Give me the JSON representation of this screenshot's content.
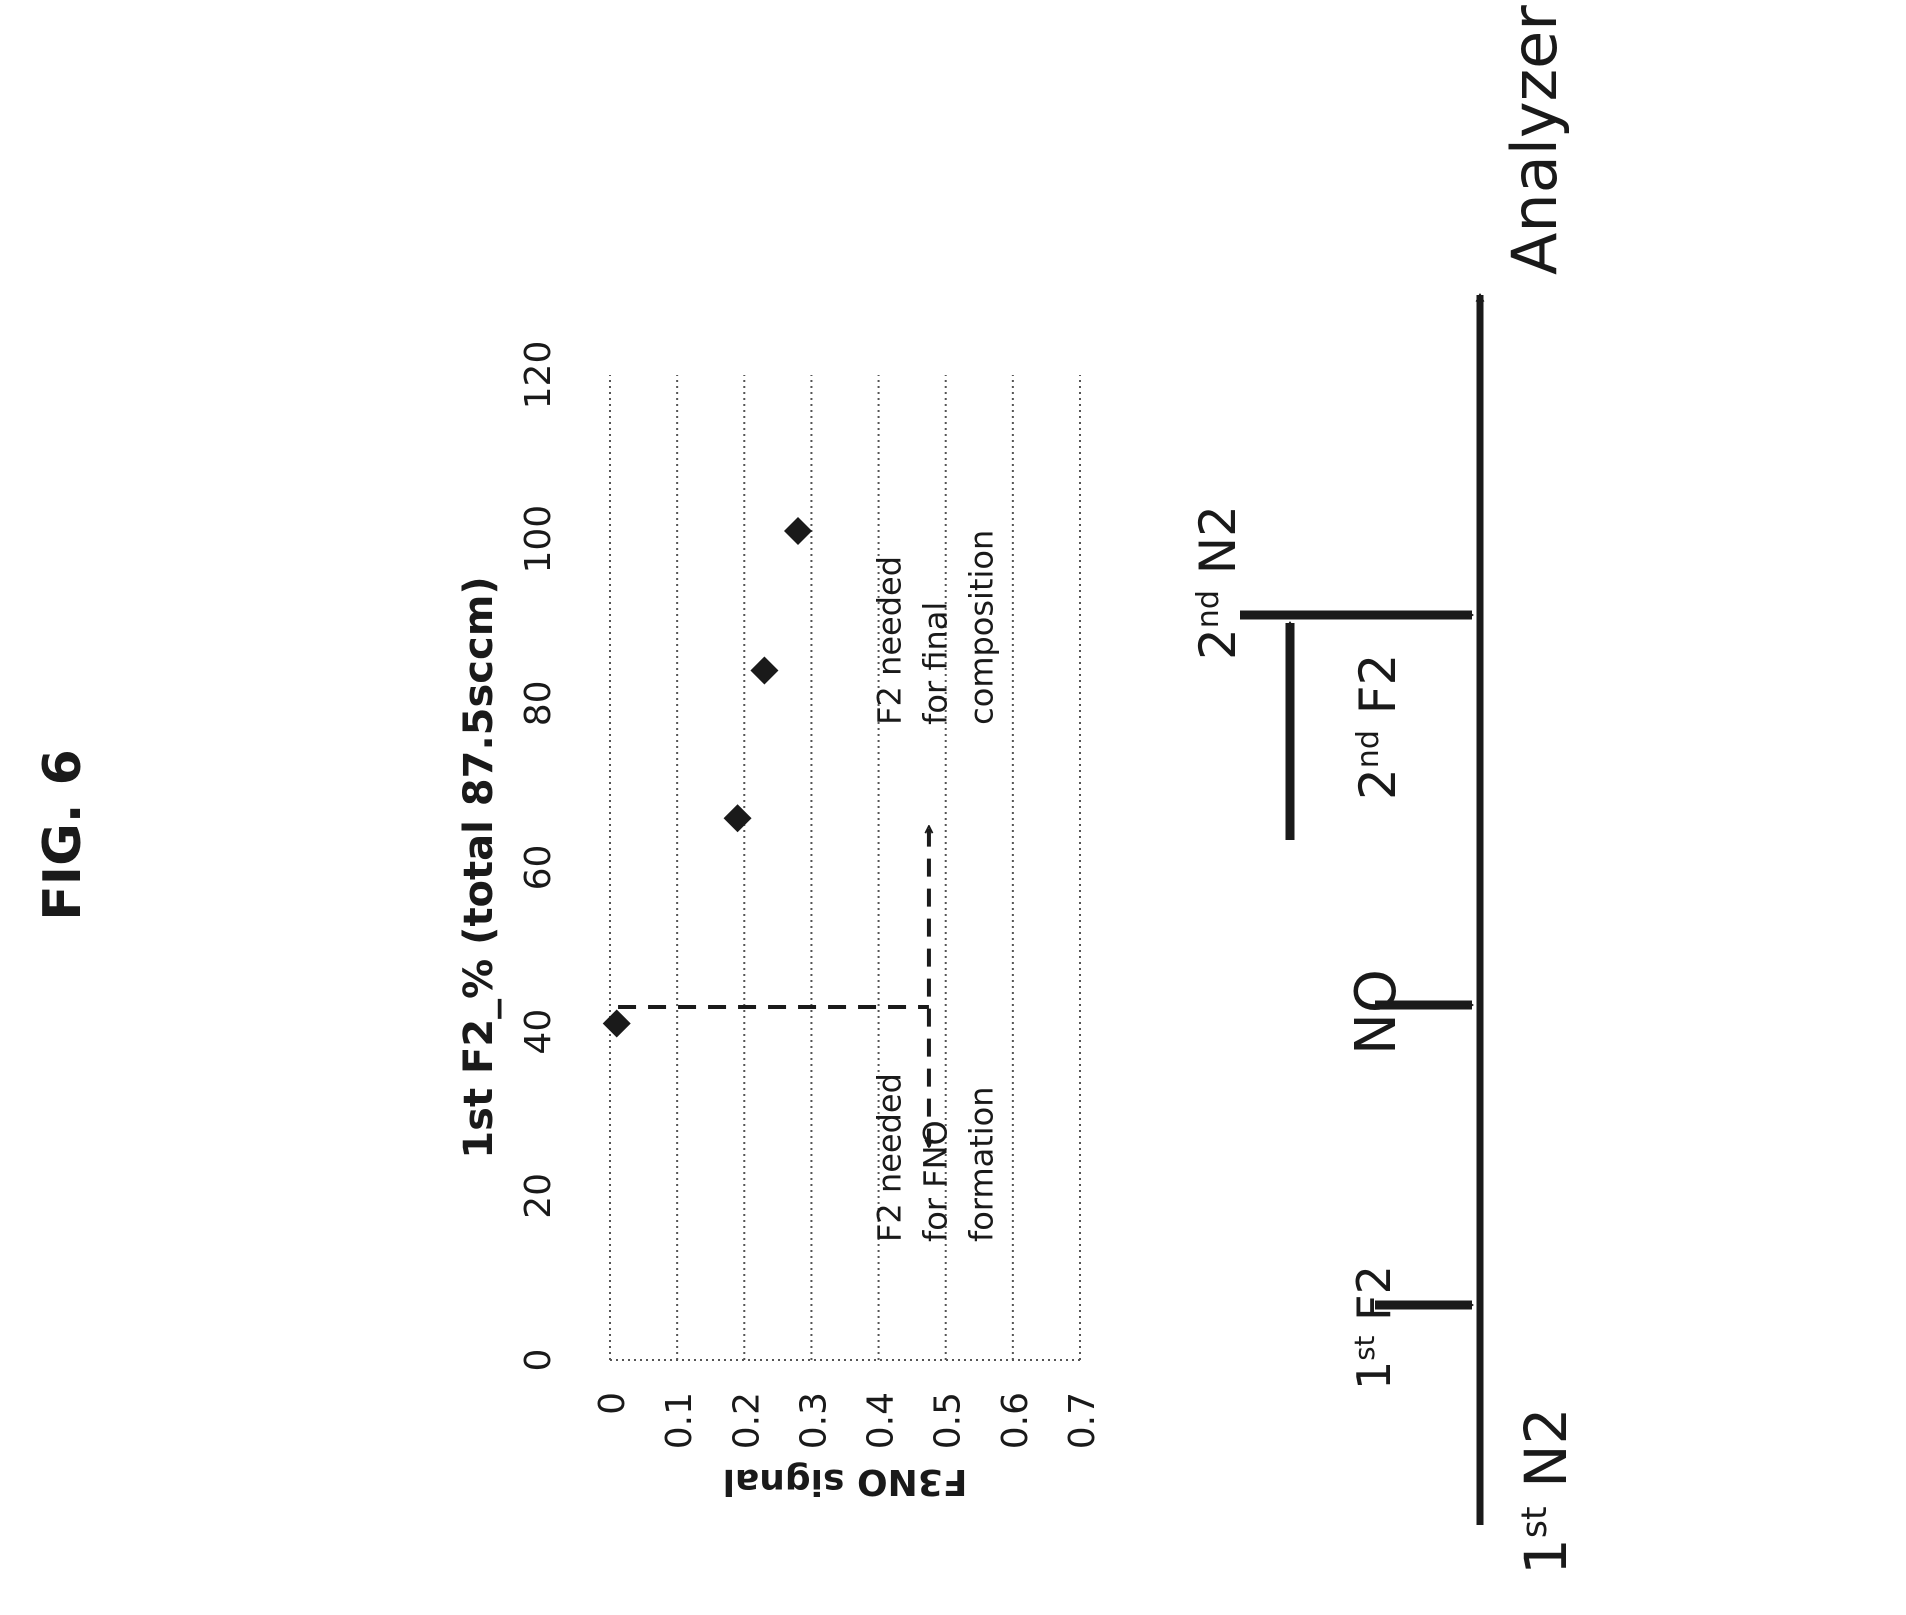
{
  "figure_label": "FIG. 6",
  "diagram": {
    "n2_first": "1st N2",
    "f2_first": "1st F2",
    "no": "NO",
    "f2_second": "2nd F2",
    "n2_second": "2nd N2",
    "analyzer": "Analyzer",
    "sup_st": "st",
    "sup_nd": "nd"
  },
  "chart_data": {
    "type": "scatter",
    "xlabel": "1st F2_% (total 87.5sccm)",
    "ylabel": "F3NO signal",
    "xlim": [
      0,
      120
    ],
    "ylim": [
      0,
      0.7
    ],
    "x_ticks": [
      "0",
      "20",
      "40",
      "60",
      "80",
      "100",
      "120"
    ],
    "y_ticks": [
      "0",
      "0.1",
      "0.2",
      "0.3",
      "0.4",
      "0.5",
      "0.6",
      "0.7"
    ],
    "grid": true,
    "marker": "diamond",
    "points": [
      {
        "x": 41,
        "y": 0.01
      },
      {
        "x": 66,
        "y": 0.19
      },
      {
        "x": 84,
        "y": 0.23
      },
      {
        "x": 101,
        "y": 0.28
      }
    ],
    "annotations": [
      {
        "text": [
          "F2 needed",
          "for FNO",
          "formation"
        ],
        "x": 29,
        "y": 0.51
      },
      {
        "text": [
          "F2 needed",
          "for final",
          "composition"
        ],
        "x": 92,
        "y": 0.51
      }
    ],
    "reference_line_x": 43
  },
  "colors": {
    "ink": "#1a1a1a",
    "grid": "#555555"
  }
}
